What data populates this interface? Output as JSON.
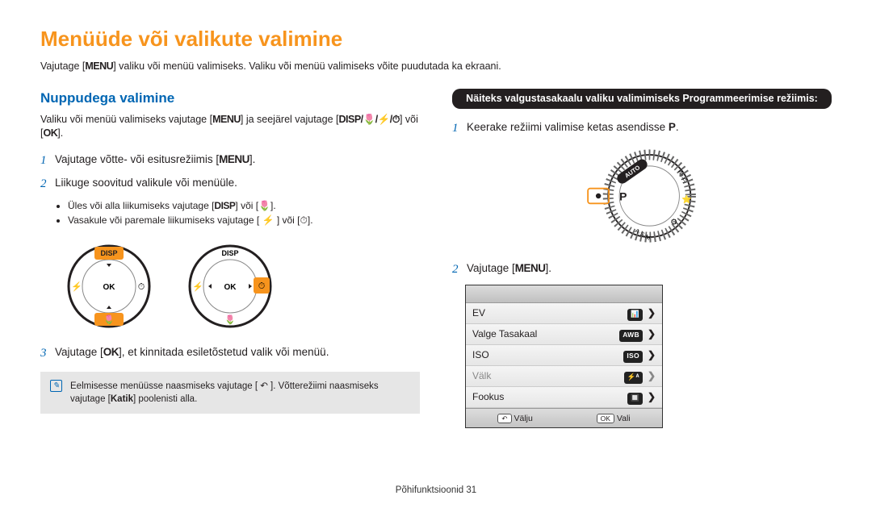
{
  "page": {
    "title": "Menüüde või valikute valimine",
    "intro_a": "Vajutage [",
    "intro_menu": "MENU",
    "intro_b": "] valiku või menüü valimiseks. Valiku või menüü valimiseks võite puudutada ka ekraani.",
    "footer": "Põhifunktsioonid  31"
  },
  "left": {
    "section_title": "Nuppudega valimine",
    "desc_a": "Valiku või menüü valimiseks vajutage [",
    "desc_menu": "MENU",
    "desc_b": "] ja seejärel vajutage [",
    "desc_pad": "DISP/🌷/⚡/⏱",
    "desc_c": "] või [",
    "desc_ok": "OK",
    "desc_d": "].",
    "step1_a": "Vajutage võtte- või esitusrežiimis [",
    "step1_menu": "MENU",
    "step1_b": "].",
    "step2": "Liikuge soovitud valikule või menüüle.",
    "sub1_a": "Üles või alla liikumiseks vajutage [",
    "sub1_disp": "DISP",
    "sub1_b": "] või [🌷].",
    "sub2_a": "Vasakule või paremale liikumiseks vajutage [ ⚡ ] või [⏱].",
    "step3_a": "Vajutage [",
    "step3_ok": "OK",
    "step3_b": "], et kinnitada esiletõstetud valik või menüü.",
    "note_a": "Eelmisesse menüüsse naasmiseks vajutage [ ↶ ]. Võtterežiimi naasmiseks vajutage [",
    "note_bold": "Katik",
    "note_b": "] poolenisti alla."
  },
  "right": {
    "black_bar": "Näiteks valgustasakaalu valiku valimimiseks Programmeerimise režiimis:",
    "step1_a": "Keerake režiimi valimise ketas asendisse ",
    "step1_mode": "P",
    "step1_b": ".",
    "step2_a": "Vajutage [",
    "step2_menu": "MENU",
    "step2_b": "]."
  },
  "dials": {
    "disp_label": "DISP",
    "ok_label": "OK",
    "flower": "🌷",
    "highlight_color": "#f7941d",
    "ring_color": "#231f20"
  },
  "mode_dial": {
    "p_label": "P",
    "auto_label": "AUTO",
    "wifi_label": "Wi-Fi",
    "asm_label": "A·S·M",
    "highlight": "#f7941d"
  },
  "menu": {
    "rows": [
      {
        "label": "EV",
        "badge": "📊",
        "disabled": false
      },
      {
        "label": "Valge Tasakaal",
        "badge": "AWB",
        "disabled": false
      },
      {
        "label": "ISO",
        "badge": "ISO",
        "disabled": false
      },
      {
        "label": "Välk",
        "badge": "⚡ᴬ",
        "disabled": true
      },
      {
        "label": "Fookus",
        "badge": "🔲",
        "disabled": false
      }
    ],
    "exit_btn": "↶",
    "exit_label": "Välju",
    "ok_btn": "OK",
    "ok_label": "Vali"
  }
}
